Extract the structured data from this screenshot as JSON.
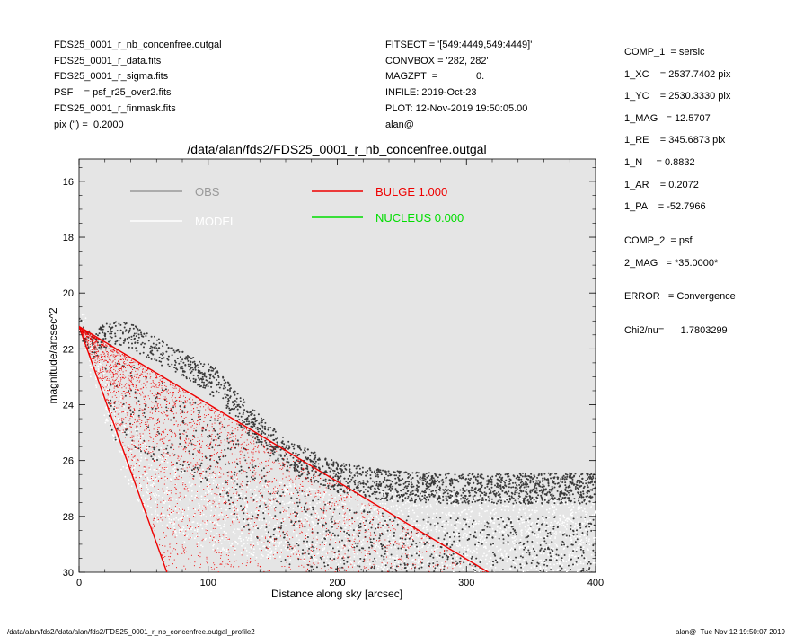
{
  "header_left": [
    "FDS25_0001_r_nb_concenfree.outgal",
    "FDS25_0001_r_data.fits",
    "FDS25_0001_r_sigma.fits",
    "PSF    = psf_r25_over2.fits",
    "FDS25_0001_r_finmask.fits",
    "pix (\") =  0.2000"
  ],
  "header_mid": [
    "FITSECT = '[549:4449,549:4449]'",
    "CONVBOX = '282, 282'",
    "MAGZPT  =              0.",
    "INFILE: 2019-Oct-23",
    "PLOT: 12-Nov-2019 19:50:05.00",
    "alan@"
  ],
  "params": [
    "COMP_1  = sersic",
    "1_XC    = 2537.7402 pix",
    "1_YC    = 2530.3330 pix",
    "1_MAG   = 12.5707",
    "1_RE    = 345.6873 pix",
    "1_N     = 0.8832",
    "1_AR    = 0.2072",
    "1_PA    = -52.7966",
    "COMP_2  = psf",
    "2_MAG   = *35.0000*",
    "ERROR   = Convergence",
    "Chi2/nu=      1.7803299"
  ],
  "footer_left": "/data/alan/fds2//data/alan/fds2/FDS25_0001_r_nb_concenfree.outgal_profile2",
  "footer_right": "alan@  Tue Nov 12 19:50:07 2019",
  "chart_data": {
    "type": "scatter",
    "title": "/data/alan/fds2/FDS25_0001_r_nb_concenfree.outgal",
    "xlabel": "Distance along sky [arcsec]",
    "ylabel": "magnitude/arcsec^2",
    "xlim": [
      0,
      400
    ],
    "ylim": [
      30,
      15.2
    ],
    "y_inverted": true,
    "x_ticks": [
      "0",
      "100",
      "200",
      "300",
      "400"
    ],
    "y_ticks": [
      "16",
      "18",
      "20",
      "22",
      "24",
      "26",
      "28",
      "30"
    ],
    "background": "#e5e5e5",
    "legend": [
      {
        "label": "OBS",
        "color": "#999999"
      },
      {
        "label": "MODEL",
        "color": "#ffffff"
      },
      {
        "label": "BULGE  1.000",
        "color": "#ee0000"
      },
      {
        "label": "NUCLEUS  0.000",
        "color": "#00dd00"
      }
    ],
    "series": [
      {
        "name": "OBS",
        "color": "#3a3a3a",
        "x": [
          3,
          8,
          12,
          18,
          25,
          35,
          50,
          70,
          90,
          105,
          130,
          160,
          200,
          240,
          280,
          320,
          360,
          400
        ],
        "y": [
          21.3,
          21.7,
          21.9,
          21.6,
          21.5,
          21.4,
          21.8,
          22.3,
          22.8,
          23.2,
          24.5,
          25.8,
          26.6,
          26.9,
          27.0,
          27.0,
          27.0,
          27.0
        ]
      },
      {
        "name": "MODEL",
        "color": "#ffffff",
        "x": [
          3,
          20,
          50,
          80,
          120,
          180,
          240,
          300,
          360,
          400
        ],
        "y": [
          21.4,
          23.8,
          26.5,
          27.5,
          28.0,
          28.3,
          28.5,
          28.6,
          28.7,
          28.8
        ]
      },
      {
        "name": "BULGE",
        "color": "#ee0000",
        "x_outer": [
          0,
          317
        ],
        "y_outer": [
          21.2,
          30.0
        ],
        "x_inner": [
          0,
          68
        ],
        "y_inner": [
          21.2,
          30.0
        ]
      }
    ]
  }
}
